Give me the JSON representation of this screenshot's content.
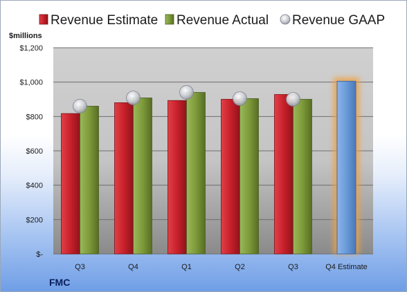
{
  "chart_data": {
    "type": "bar",
    "categories": [
      "Q3",
      "Q4",
      "Q1",
      "Q2",
      "Q3",
      "Q4 Estimate"
    ],
    "series": [
      {
        "name": "Revenue Estimate",
        "color": "#c8202a",
        "values": [
          817,
          880,
          893,
          900,
          928,
          1005
        ]
      },
      {
        "name": "Revenue Actual",
        "color": "#7e9a3a",
        "values": [
          860,
          908,
          940,
          904,
          900,
          null
        ]
      },
      {
        "name": "Revenue GAAP",
        "color": "#b8bcc4",
        "values": [
          860,
          908,
          940,
          904,
          900,
          null
        ]
      }
    ],
    "highlight": {
      "index": 5,
      "series": 0,
      "color": "#6a9ad8",
      "glow": "#f0a040"
    },
    "ylabel": "$millions",
    "ylim": [
      0,
      1200
    ],
    "yticks": [
      0,
      200,
      400,
      600,
      800,
      1000,
      1200
    ],
    "ytick_labels": [
      "$-",
      "$200",
      "$400",
      "$600",
      "$800",
      "$1,000",
      "$1,200"
    ],
    "grid": true,
    "legend": "top",
    "company": "FMC"
  }
}
